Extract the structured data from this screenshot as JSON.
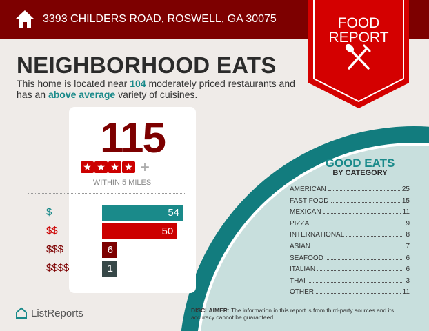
{
  "header": {
    "address": "3393 CHILDERS ROAD, ROSWELL, GA 30075",
    "ribbon_line1": "FOOD",
    "ribbon_line2": "REPORT"
  },
  "title": "NEIGHBORHOOD EATS",
  "summary": {
    "pre": "This home is located near ",
    "count": "104",
    "mid": " moderately priced restaurants and has an ",
    "rating": "above average",
    "post": " variety of cuisines."
  },
  "card": {
    "total": "115",
    "stars": 4,
    "plus": "+",
    "within": "WITHIN 5 MILES",
    "price_levels": [
      {
        "label": "$",
        "value": 54,
        "color": "#1a8a8a"
      },
      {
        "label": "$$",
        "value": 50,
        "color": "#cc0000"
      },
      {
        "label": "$$$",
        "value": 6,
        "color": "#7d0000"
      },
      {
        "label": "$$$$",
        "value": 1,
        "color": "#374848"
      }
    ]
  },
  "categories": {
    "title": "GOOD EATS",
    "subtitle": "BY CATEGORY",
    "items": [
      {
        "name": "AMERICAN",
        "count": "25"
      },
      {
        "name": "FAST FOOD",
        "count": "15"
      },
      {
        "name": "MEXICAN",
        "count": "11"
      },
      {
        "name": "PIZZA",
        "count": "9"
      },
      {
        "name": "INTERNATIONAL",
        "count": "8"
      },
      {
        "name": "ASIAN",
        "count": "7"
      },
      {
        "name": "SEAFOOD",
        "count": "6"
      },
      {
        "name": "ITALIAN",
        "count": "6"
      },
      {
        "name": "THAI",
        "count": "3"
      },
      {
        "name": "OTHER",
        "count": "11"
      }
    ]
  },
  "footer": {
    "logo": "ListReports",
    "disclaimer_label": "DISCLAIMER:",
    "disclaimer": " The information in this report is from third-party sources and its accuracy cannot be guaranteed."
  },
  "colors": {
    "dark_red": "#7d0000",
    "red": "#cc0000",
    "teal": "#1a8a8a",
    "light_teal": "#c8dfdd"
  }
}
